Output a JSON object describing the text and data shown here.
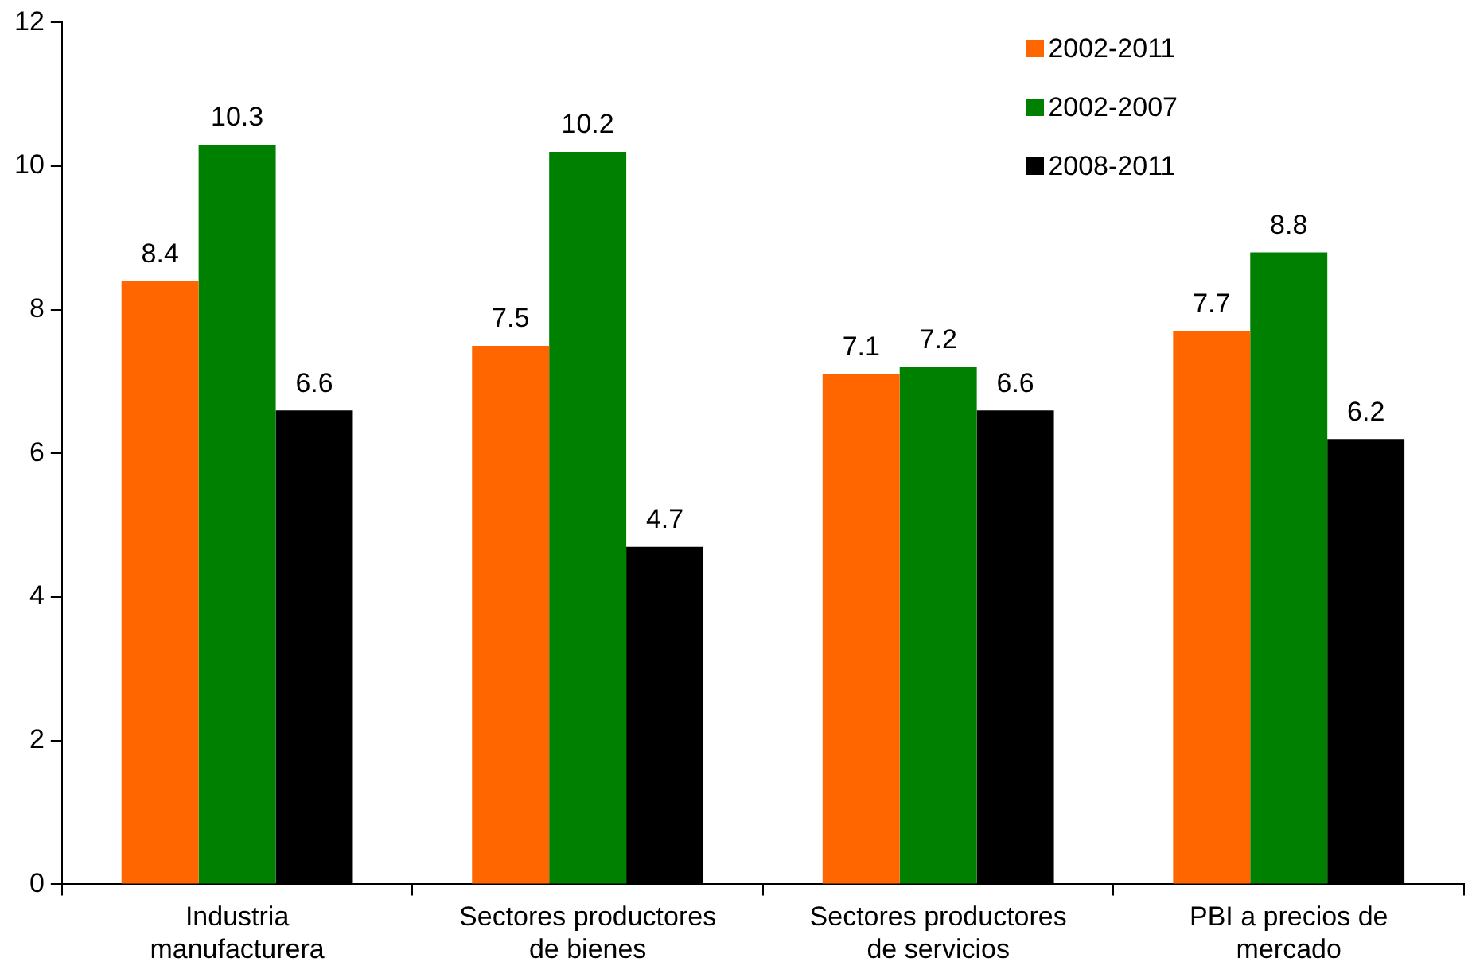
{
  "chart_data": {
    "type": "bar",
    "categories": [
      "Industria manufacturera",
      "Sectores productores de bienes",
      "Sectores productores de servicios",
      "PBI a precios de mercado"
    ],
    "series": [
      {
        "name": "2002-2011",
        "color": "#ff6600",
        "values": [
          8.4,
          7.5,
          7.1,
          7.7
        ]
      },
      {
        "name": "2002-2007",
        "color": "#008000",
        "values": [
          10.3,
          10.2,
          7.2,
          8.8
        ]
      },
      {
        "name": "2008-2011",
        "color": "#000000",
        "values": [
          6.6,
          4.7,
          6.6,
          6.2
        ]
      }
    ],
    "ylim": [
      0,
      12
    ],
    "yticks": [
      0,
      2,
      4,
      6,
      8,
      10,
      12
    ],
    "grid": false,
    "legend": "top right",
    "data_labels": true
  }
}
